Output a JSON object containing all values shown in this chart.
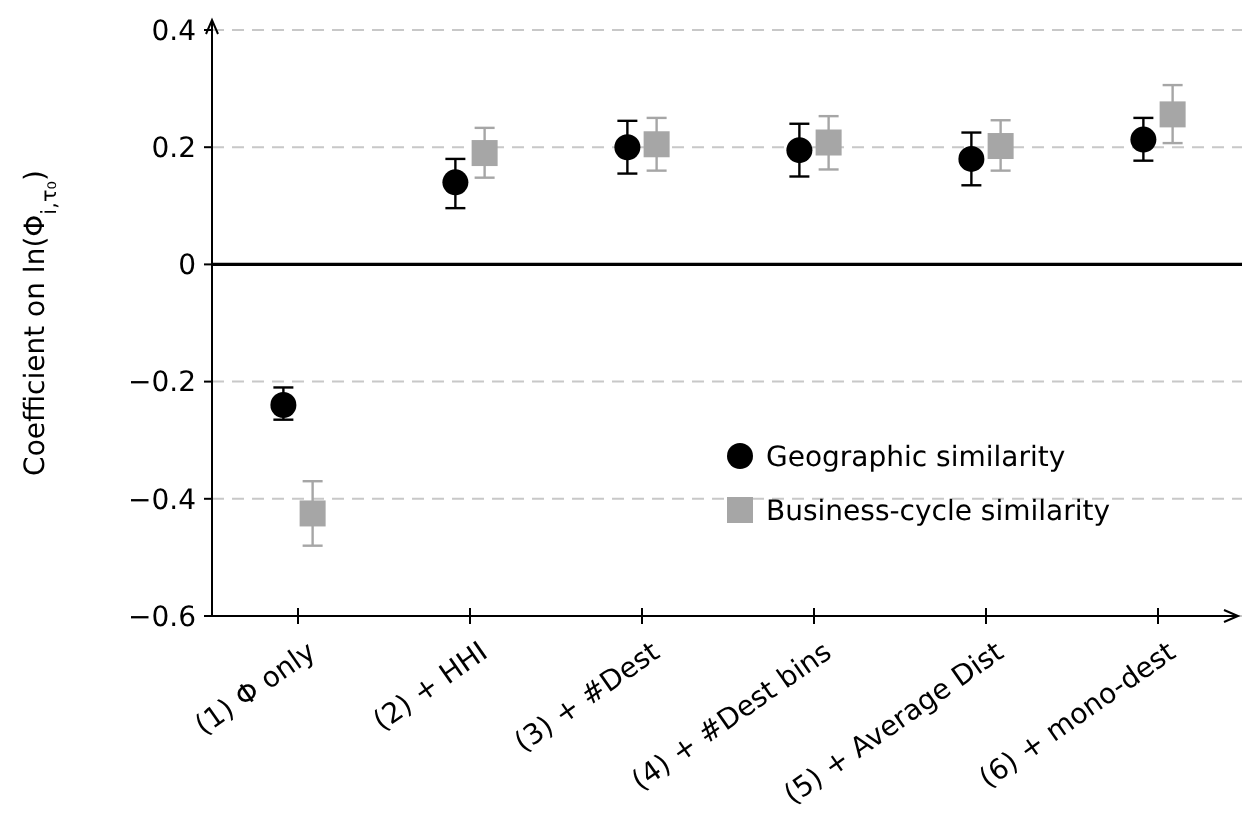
{
  "chart_data": {
    "type": "scatter",
    "ylabel": "Coefficient on ln(Φ$_{i,τ₀}$)",
    "categories": [
      "(1) Φ only",
      "(2) + HHI",
      "(3) + #Dest",
      "(4) + #Dest bins",
      "(5) + Average Dist",
      "(6) + mono-dest"
    ],
    "series": [
      {
        "name": "Geographic similarity",
        "color": "#000000",
        "marker": "circle",
        "values": [
          -0.24,
          0.14,
          0.2,
          0.195,
          0.18,
          0.213
        ],
        "errors": [
          [
            -0.265,
            -0.21
          ],
          [
            0.096,
            0.18
          ],
          [
            0.155,
            0.245
          ],
          [
            0.15,
            0.24
          ],
          [
            0.135,
            0.225
          ],
          [
            0.177,
            0.25
          ]
        ]
      },
      {
        "name": "Business-cycle similarity",
        "color": "#a6a6a6",
        "marker": "square",
        "values": [
          -0.425,
          0.19,
          0.205,
          0.208,
          0.202,
          0.256
        ],
        "errors": [
          [
            -0.48,
            -0.37
          ],
          [
            0.148,
            0.233
          ],
          [
            0.16,
            0.25
          ],
          [
            0.162,
            0.253
          ],
          [
            0.16,
            0.246
          ],
          [
            0.207,
            0.306
          ]
        ]
      }
    ],
    "ylim": [
      -0.6,
      0.4
    ],
    "yticks": [
      {
        "value": -0.6,
        "label": "−0.6"
      },
      {
        "value": -0.4,
        "label": "−0.4"
      },
      {
        "value": -0.2,
        "label": "−0.2"
      },
      0,
      0.2,
      0.4
    ],
    "grid": "y",
    "ref_lines": [
      {
        "axis": "y",
        "value": 0,
        "color": "#000000",
        "line_style": "solid"
      }
    ],
    "legend": "bottom right"
  }
}
